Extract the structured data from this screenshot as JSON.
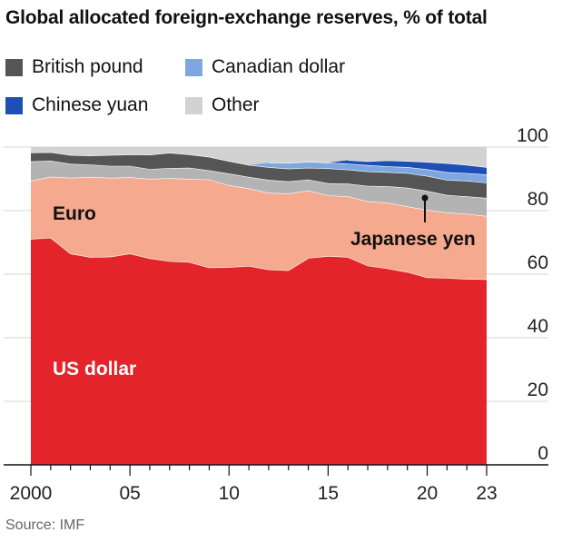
{
  "chart_data": {
    "type": "area",
    "title": "Global allocated foreign-exchange reserves, % of total",
    "source": "Source: IMF",
    "x": [
      2000,
      2001,
      2002,
      2003,
      2004,
      2005,
      2006,
      2007,
      2008,
      2009,
      2010,
      2011,
      2012,
      2013,
      2014,
      2015,
      2016,
      2017,
      2018,
      2019,
      2020,
      2021,
      2022,
      2023
    ],
    "x_tick_labels": [
      {
        "x": 2000,
        "label": "2000"
      },
      {
        "x": 2005,
        "label": "05"
      },
      {
        "x": 2010,
        "label": "10"
      },
      {
        "x": 2015,
        "label": "15"
      },
      {
        "x": 2020,
        "label": "20"
      },
      {
        "x": 2023,
        "label": "23"
      }
    ],
    "y_ticks": [
      0,
      20,
      40,
      60,
      80,
      100
    ],
    "ylim": [
      0,
      100
    ],
    "stack_order": [
      "US dollar",
      "Euro",
      "Japanese yen",
      "British pound",
      "Canadian dollar",
      "Chinese yuan",
      "Other"
    ],
    "series": [
      {
        "name": "US dollar",
        "color": "#e3242b",
        "values": [
          71.1,
          71.5,
          66.5,
          65.4,
          65.5,
          66.5,
          65.0,
          64.1,
          63.8,
          62.1,
          62.2,
          62.6,
          61.5,
          61.2,
          65.1,
          65.7,
          65.4,
          62.7,
          61.8,
          60.7,
          59.0,
          58.8,
          58.5,
          58.4
        ]
      },
      {
        "name": "Euro",
        "color": "#f5a98e",
        "values": [
          18.3,
          19.2,
          23.8,
          25.2,
          24.8,
          24.0,
          25.0,
          26.1,
          26.2,
          27.7,
          25.8,
          24.4,
          24.1,
          24.2,
          21.2,
          19.1,
          19.1,
          20.2,
          20.7,
          20.6,
          21.2,
          20.6,
          20.5,
          19.9
        ]
      },
      {
        "name": "Japanese yen",
        "color": "#b3b3b3",
        "values": [
          6.1,
          5.0,
          4.4,
          3.9,
          3.8,
          3.6,
          3.1,
          3.2,
          3.5,
          2.9,
          3.7,
          3.6,
          4.1,
          3.8,
          3.5,
          3.8,
          4.0,
          4.9,
          5.2,
          5.9,
          6.0,
          5.5,
          5.5,
          5.7
        ]
      },
      {
        "name": "British pound",
        "color": "#555555",
        "values": [
          2.8,
          2.7,
          2.8,
          2.8,
          3.4,
          3.6,
          4.5,
          4.8,
          4.2,
          4.2,
          3.9,
          3.8,
          4.0,
          4.0,
          3.7,
          4.7,
          4.4,
          4.5,
          4.4,
          4.6,
          4.7,
          4.8,
          4.9,
          4.8
        ]
      },
      {
        "name": "Canadian dollar",
        "color": "#7ea7df",
        "values": [
          0,
          0,
          0,
          0,
          0,
          0,
          0,
          0,
          0,
          0,
          0,
          0,
          1.4,
          1.8,
          1.9,
          1.8,
          1.9,
          2.0,
          1.8,
          1.9,
          2.1,
          2.4,
          2.4,
          2.6
        ]
      },
      {
        "name": "Chinese yuan",
        "color": "#1e4fb5",
        "values": [
          0,
          0,
          0,
          0,
          0,
          0,
          0,
          0,
          0,
          0,
          0,
          0,
          0,
          0,
          0,
          0,
          1.1,
          1.2,
          1.9,
          1.9,
          2.3,
          2.8,
          2.6,
          2.3
        ]
      },
      {
        "name": "Other",
        "color": "#d2d2d2",
        "values": [
          1.7,
          1.6,
          2.5,
          2.7,
          2.5,
          2.3,
          2.4,
          1.8,
          2.3,
          3.1,
          4.4,
          5.6,
          4.9,
          5.0,
          4.6,
          4.9,
          4.1,
          4.5,
          4.2,
          4.4,
          4.7,
          5.1,
          5.6,
          6.3
        ]
      }
    ],
    "legend": [
      {
        "name": "British pound",
        "color": "#555555"
      },
      {
        "name": "Canadian dollar",
        "color": "#7ea7df"
      },
      {
        "name": "Chinese yuan",
        "color": "#1e4fb5"
      },
      {
        "name": "Other",
        "color": "#d2d2d2"
      }
    ],
    "annotations": {
      "us_dollar": "US dollar",
      "euro": "Euro",
      "japanese_yen": "Japanese yen"
    },
    "grid": true
  }
}
